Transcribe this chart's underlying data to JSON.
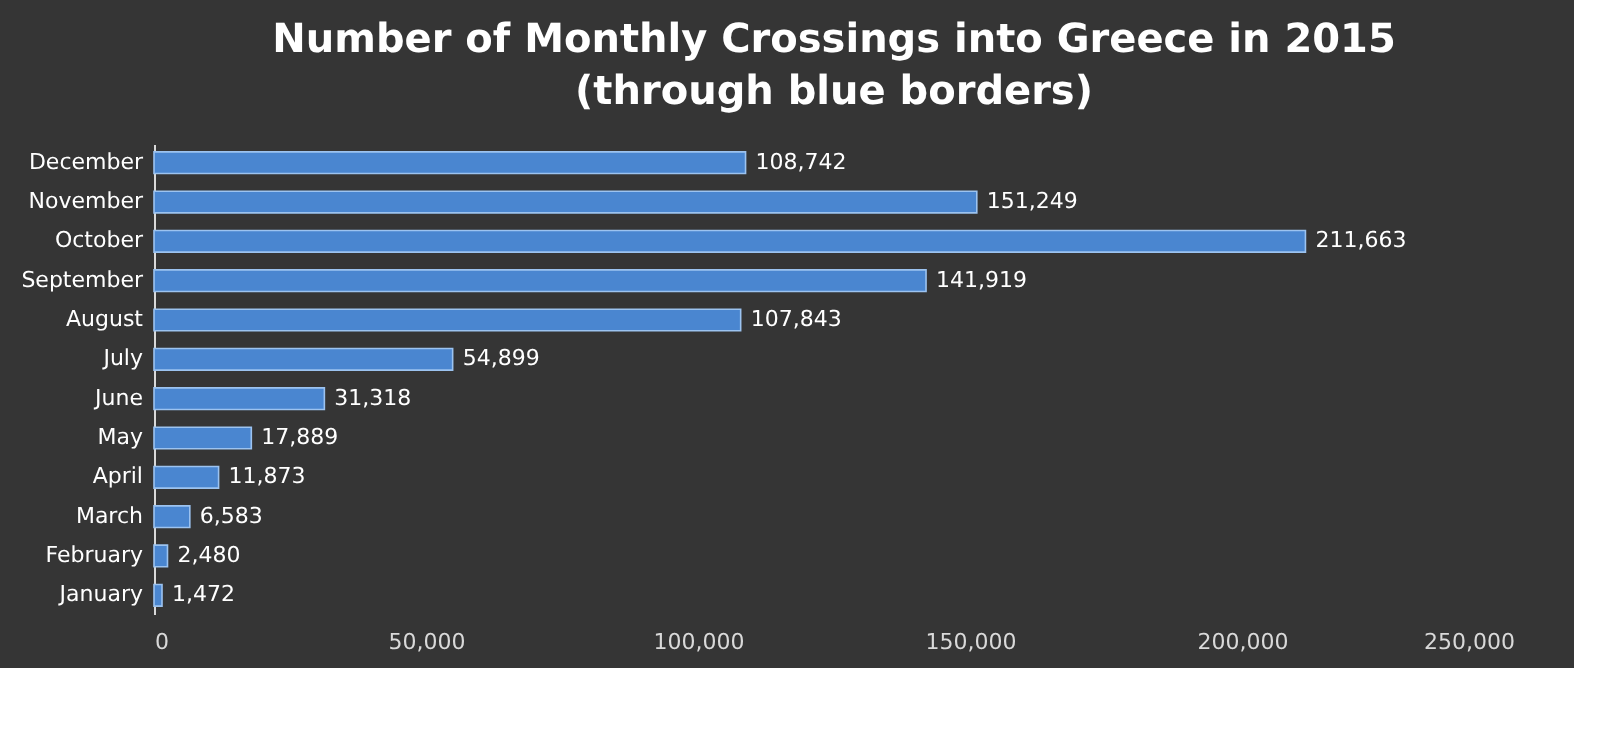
{
  "chart_data": {
    "type": "bar",
    "orientation": "horizontal",
    "title": "Number of Monthly Crossings into Greece in 2015",
    "subtitle": "(through blue borders)",
    "categories": [
      "December",
      "November",
      "October",
      "September",
      "August",
      "July",
      "June",
      "May",
      "April",
      "March",
      "February",
      "January"
    ],
    "values": [
      108742,
      151249,
      211663,
      141919,
      107843,
      54899,
      31318,
      17889,
      11873,
      6583,
      2480,
      1472
    ],
    "value_labels": [
      "108,742",
      "151,249",
      "211,663",
      "141,919",
      "107,843",
      "54,899",
      "31,318",
      "17,889",
      "11,873",
      "6,583",
      "2,480",
      "1,472"
    ],
    "color": "#4a86d0",
    "xlim": [
      0,
      250000
    ],
    "xticks": [
      0,
      {
        "value": 50000,
        "label": "50,000"
      },
      {
        "value": 100000,
        "label": "100,000"
      },
      {
        "value": 150000,
        "label": "150,000"
      },
      {
        "value": 200000,
        "label": "200,000"
      },
      {
        "value": 250000,
        "label": "250,000"
      }
    ],
    "grid": false
  }
}
